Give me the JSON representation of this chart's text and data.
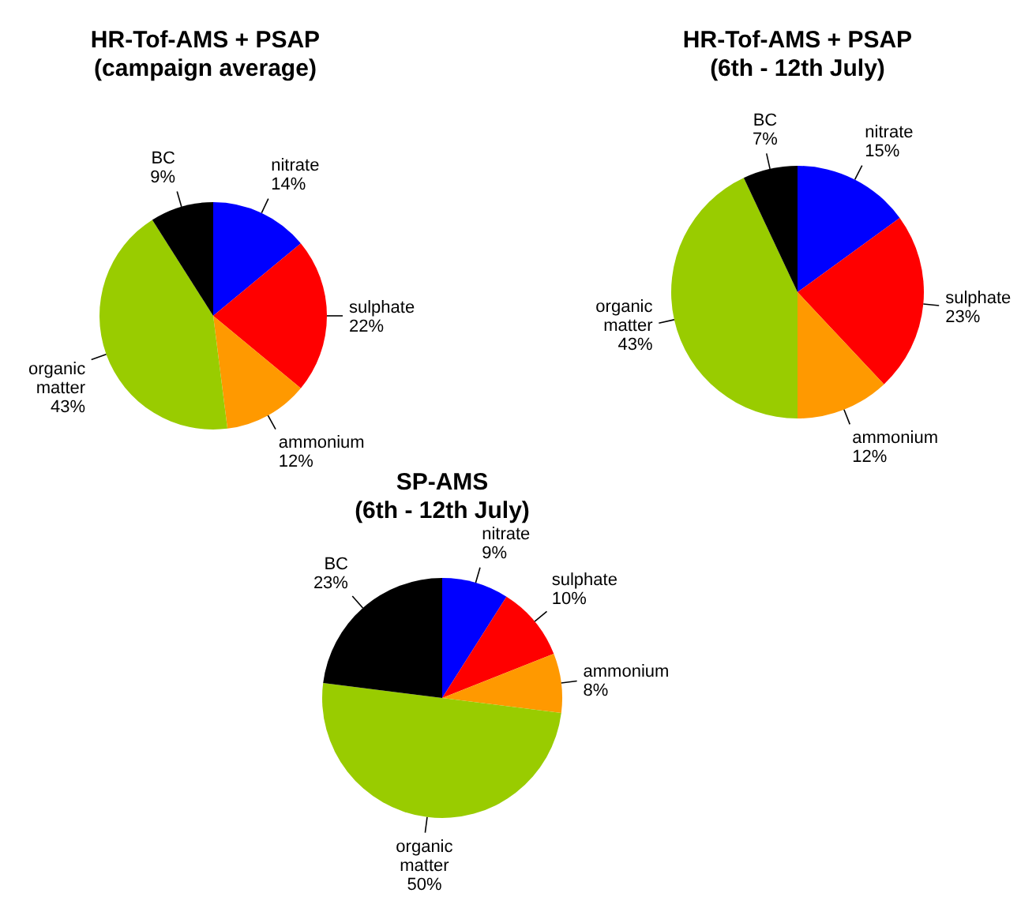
{
  "chart_data": [
    {
      "type": "pie",
      "title": "HR-Tof-AMS + PSAP",
      "subtitle": "(campaign average)",
      "categories": [
        "nitrate",
        "sulphate",
        "ammonium",
        "organic matter",
        "BC"
      ],
      "values": [
        14,
        22,
        12,
        43,
        9
      ],
      "value_labels": [
        "14%",
        "22%",
        "12%",
        "43%",
        "9%"
      ],
      "colors": [
        "#0000ff",
        "#ff0000",
        "#ff9900",
        "#99cc00",
        "#000000"
      ]
    },
    {
      "type": "pie",
      "title": "HR-Tof-AMS + PSAP",
      "subtitle": "(6th - 12th July)",
      "categories": [
        "nitrate",
        "sulphate",
        "ammonium",
        "organic matter",
        "BC"
      ],
      "values": [
        15,
        23,
        12,
        43,
        7
      ],
      "value_labels": [
        "15%",
        "23%",
        "12%",
        "43%",
        "7%"
      ],
      "colors": [
        "#0000ff",
        "#ff0000",
        "#ff9900",
        "#99cc00",
        "#000000"
      ]
    },
    {
      "type": "pie",
      "title": "SP-AMS",
      "subtitle": "(6th - 12th July)",
      "categories": [
        "nitrate",
        "sulphate",
        "ammonium",
        "organic matter",
        "BC"
      ],
      "values": [
        9,
        10,
        8,
        50,
        23
      ],
      "value_labels": [
        "9%",
        "10%",
        "8%",
        "50%",
        "23%"
      ],
      "colors": [
        "#0000ff",
        "#ff0000",
        "#ff9900",
        "#99cc00",
        "#000000"
      ]
    }
  ]
}
